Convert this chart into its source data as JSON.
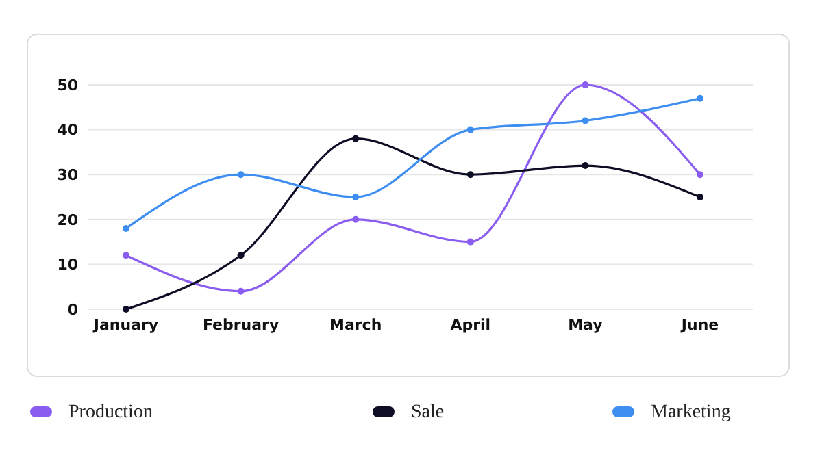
{
  "chart_data": {
    "type": "line",
    "categories": [
      "January",
      "February",
      "March",
      "April",
      "May",
      "June"
    ],
    "series": [
      {
        "name": "Production",
        "color": "#8a5cf0",
        "values": [
          12,
          4,
          20,
          15,
          50,
          30
        ]
      },
      {
        "name": "Sale",
        "color": "#0d0d26",
        "values": [
          0,
          12,
          38,
          30,
          32,
          25
        ]
      },
      {
        "name": "Marketing",
        "color": "#3d8ef0",
        "values": [
          18,
          30,
          25,
          40,
          42,
          47
        ]
      }
    ],
    "ylim": [
      0,
      50
    ],
    "yticks": [
      0,
      10,
      20,
      30,
      40,
      50
    ],
    "grid": "y",
    "legend": "bottom",
    "marker": "circle",
    "line_style": "solid"
  }
}
